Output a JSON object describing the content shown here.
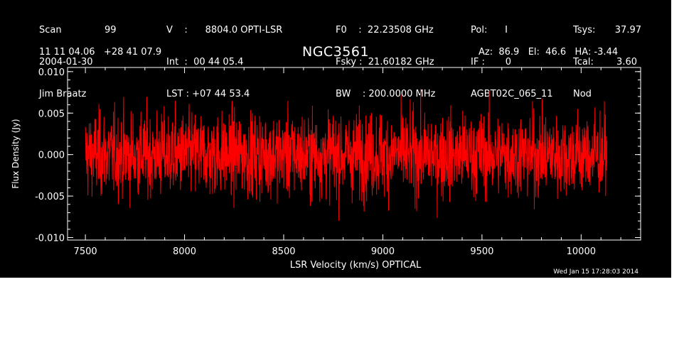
{
  "header": {
    "col1": {
      "row1_label": "Scan",
      "row1_value": "99",
      "row2": "2004-01-30",
      "row3": "Jim Braatz"
    },
    "col2": {
      "row1": "V    :      8804.0 OPTI-LSR",
      "row2": "Int  :  00 44 05.4",
      "row3": "LST : +07 44 53.4"
    },
    "col3": {
      "row1": "F0    :  22.23508 GHz",
      "row2": "Fsky :  21.60182 GHz",
      "row3": "BW    : 200.0000 MHz"
    },
    "col4": {
      "row1": "Pol:      I",
      "row2": "IF :       0",
      "row3": "AGBT02C_065_11"
    },
    "col5": {
      "row1_label": "Tsys:",
      "row1_value": "37.97",
      "row2_label": "Tcal:",
      "row2_value": "3.60",
      "row3": "Nod"
    },
    "coords": "11 11 04.06   +28 41 07.9",
    "telescope": "Az:  86.9   El:  46.6   HA: -3.44"
  },
  "source_name": "NGC3561",
  "timestamp": "Wed Jan 15 17:28:03 2014",
  "colors": {
    "background": "#000000",
    "foreground": "#ffffff",
    "trace": "#ff0000"
  },
  "chart_data": {
    "type": "line",
    "xlabel": "LSR Velocity (km/s) OPTICAL",
    "ylabel": "Flux Density (Jy)",
    "xlim": [
      7410,
      10300
    ],
    "ylim": [
      -0.0103,
      0.0105
    ],
    "xticks": [
      "7500",
      "8000",
      "8500",
      "9000",
      "9500",
      "10000"
    ],
    "yticks": [
      "0.010",
      "0.005",
      "0.000",
      "-0.005",
      "-0.010"
    ],
    "series": [
      {
        "x_range": [
          7500,
          10130
        ],
        "points": 2048,
        "noise_rms": 0.0028,
        "peak": 0.0085,
        "trough": -0.009
      }
    ]
  }
}
